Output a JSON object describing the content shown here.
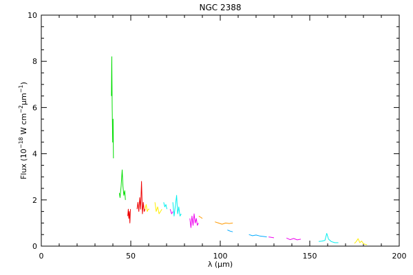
{
  "chart_data": {
    "type": "line",
    "title": "NGC 2388",
    "xlabel": "λ (μm)",
    "ylabel_parts": {
      "base": "Flux (10",
      "exp1": "−18",
      "mid": " W cm",
      "exp2": "−2",
      "unit": "μm",
      "exp3": "−1",
      "close": ")"
    },
    "xlim": [
      0,
      200
    ],
    "ylim": [
      0,
      10
    ],
    "xticks": [
      0,
      50,
      100,
      150,
      200
    ],
    "yticks": [
      0,
      2,
      4,
      6,
      8,
      10
    ],
    "xtick_labels": [
      "0",
      "50",
      "100",
      "150",
      "200"
    ],
    "ytick_labels": [
      "0",
      "2",
      "4",
      "6",
      "8",
      "10"
    ],
    "grid": false,
    "series": [
      {
        "color": "#00dd00",
        "points": [
          [
            39.2,
            6.5
          ],
          [
            39.4,
            8.2
          ],
          [
            39.6,
            6.0
          ],
          [
            39.9,
            4.5
          ],
          [
            40.1,
            5.5
          ],
          [
            40.3,
            3.8
          ]
        ]
      },
      {
        "color": "#00dd00",
        "points": [
          [
            43.6,
            2.3
          ],
          [
            44.0,
            2.1
          ],
          [
            44.6,
            2.6
          ],
          [
            45.2,
            3.3
          ],
          [
            45.6,
            2.6
          ],
          [
            46.1,
            2.2
          ],
          [
            46.6,
            2.4
          ],
          [
            47.0,
            2.0
          ]
        ]
      },
      {
        "color": "#ee0000",
        "points": [
          [
            48.3,
            1.3
          ],
          [
            48.6,
            1.6
          ],
          [
            48.9,
            1.2
          ],
          [
            49.2,
            1.5
          ],
          [
            49.5,
            1.0
          ],
          [
            49.8,
            1.6
          ]
        ]
      },
      {
        "color": "#ee0000",
        "points": [
          [
            53.5,
            1.6
          ],
          [
            54.0,
            1.9
          ],
          [
            54.5,
            1.5
          ],
          [
            55.0,
            2.1
          ],
          [
            55.5,
            1.6
          ],
          [
            56.0,
            2.8
          ],
          [
            56.5,
            1.4
          ],
          [
            57.0,
            1.9
          ],
          [
            57.5,
            1.5
          ],
          [
            58.0,
            1.6
          ]
        ]
      },
      {
        "color": "#ffee00",
        "points": [
          [
            58.0,
            1.6
          ],
          [
            58.6,
            1.8
          ],
          [
            59.2,
            1.5
          ],
          [
            59.8,
            1.6
          ],
          [
            60.4,
            1.6
          ]
        ]
      },
      {
        "color": "#ffee00",
        "points": [
          [
            63.5,
            1.9
          ],
          [
            64.2,
            1.5
          ],
          [
            65.0,
            1.7
          ],
          [
            65.8,
            1.4
          ],
          [
            66.6,
            1.5
          ],
          [
            67.4,
            1.6
          ]
        ]
      },
      {
        "color": "#00eeee",
        "points": [
          [
            68.4,
            1.9
          ],
          [
            69.0,
            1.7
          ],
          [
            69.6,
            1.8
          ],
          [
            70.2,
            1.6
          ]
        ]
      },
      {
        "color": "#ee00ee",
        "points": [
          [
            72.0,
            1.6
          ],
          [
            72.8,
            1.4
          ],
          [
            73.6,
            1.5
          ]
        ]
      },
      {
        "color": "#00eeee",
        "points": [
          [
            73.5,
            1.9
          ],
          [
            74.2,
            1.3
          ],
          [
            75.0,
            1.8
          ],
          [
            75.6,
            2.2
          ],
          [
            76.2,
            1.4
          ],
          [
            76.8,
            1.7
          ],
          [
            77.5,
            1.3
          ],
          [
            78.2,
            1.4
          ]
        ]
      },
      {
        "color": "#ee00ee",
        "points": [
          [
            83.0,
            1.2
          ],
          [
            83.6,
            0.8
          ],
          [
            84.2,
            1.3
          ],
          [
            84.8,
            0.9
          ],
          [
            85.4,
            1.4
          ],
          [
            86.0,
            1.0
          ],
          [
            86.6,
            1.2
          ],
          [
            87.2,
            0.9
          ],
          [
            87.8,
            1.0
          ]
        ]
      },
      {
        "color": "#ff9900",
        "points": [
          [
            88.0,
            1.3
          ],
          [
            89.0,
            1.25
          ],
          [
            90.0,
            1.2
          ]
        ]
      },
      {
        "color": "#ff9900",
        "points": [
          [
            97.0,
            1.05
          ],
          [
            99.0,
            1.0
          ],
          [
            101.0,
            0.95
          ],
          [
            103.0,
            1.0
          ],
          [
            105.0,
            0.98
          ],
          [
            107.0,
            1.0
          ]
        ]
      },
      {
        "color": "#00aaff",
        "points": [
          [
            104.0,
            0.7
          ],
          [
            105.5,
            0.65
          ],
          [
            107.0,
            0.62
          ]
        ]
      },
      {
        "color": "#00aaff",
        "points": [
          [
            116.0,
            0.5
          ],
          [
            118.0,
            0.45
          ],
          [
            120.0,
            0.48
          ],
          [
            122.0,
            0.44
          ],
          [
            124.0,
            0.42
          ],
          [
            126.0,
            0.4
          ]
        ]
      },
      {
        "color": "#ee00ee",
        "points": [
          [
            127.0,
            0.4
          ],
          [
            128.5,
            0.38
          ],
          [
            130.0,
            0.36
          ]
        ]
      },
      {
        "color": "#ee00ee",
        "points": [
          [
            137.0,
            0.35
          ],
          [
            139.0,
            0.28
          ],
          [
            141.0,
            0.33
          ],
          [
            143.0,
            0.27
          ],
          [
            145.0,
            0.3
          ]
        ]
      },
      {
        "color": "#00eeee",
        "points": [
          [
            155.0,
            0.2
          ],
          [
            157.0,
            0.22
          ],
          [
            158.5,
            0.25
          ],
          [
            159.5,
            0.55
          ],
          [
            160.5,
            0.3
          ],
          [
            162.0,
            0.2
          ],
          [
            164.0,
            0.15
          ],
          [
            166.0,
            0.15
          ]
        ]
      },
      {
        "color": "#ffee00",
        "points": [
          [
            175.0,
            0.12
          ],
          [
            176.0,
            0.2
          ],
          [
            177.0,
            0.32
          ],
          [
            178.0,
            0.15
          ],
          [
            179.0,
            0.22
          ],
          [
            180.0,
            0.1
          ],
          [
            181.0,
            0.08
          ],
          [
            182.0,
            0.06
          ]
        ]
      }
    ]
  }
}
